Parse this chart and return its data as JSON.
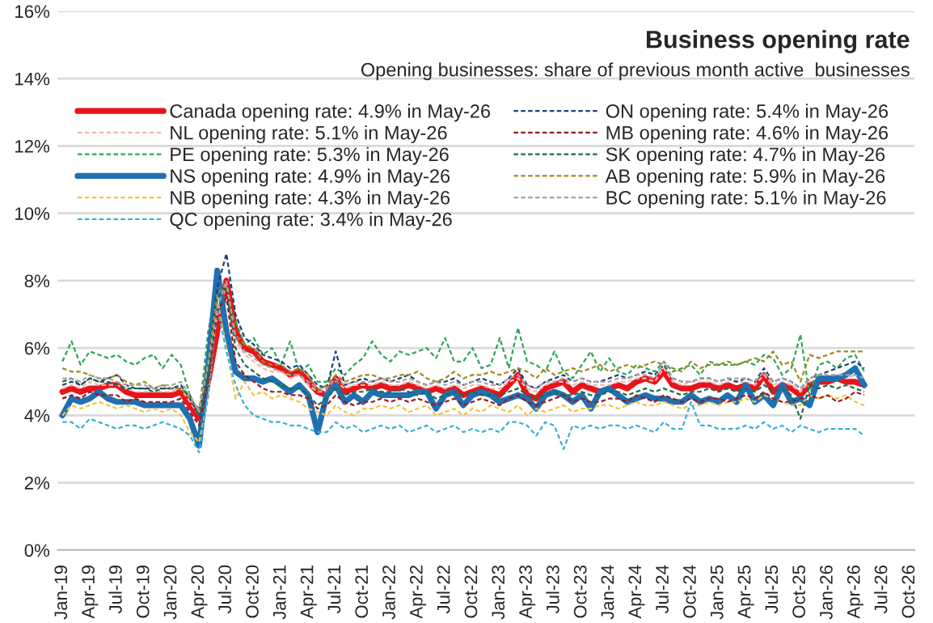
{
  "chart_data": {
    "type": "line",
    "title": "Business opening rate",
    "subtitle": "Opening businesses: share of previous month active  businesses",
    "categories": [
      "Jan-19",
      null,
      null,
      "Apr-19",
      null,
      null,
      "Jul-19",
      null,
      null,
      "Oct-19",
      null,
      null,
      "Jan-20",
      null,
      null,
      "Apr-20",
      null,
      null,
      "Jul-20",
      null,
      null,
      "Oct-20",
      null,
      null,
      "Jan-21",
      null,
      null,
      "Apr-21",
      null,
      null,
      "Jul-21",
      null,
      null,
      "Oct-21",
      null,
      null,
      "Jan-22",
      null,
      null,
      "Apr-22",
      null,
      null,
      "Jul-22",
      null,
      null,
      "Oct-22",
      null,
      null,
      "Jan-23",
      null,
      null,
      "Apr-23",
      null,
      null,
      "Jul-23",
      null,
      null,
      "Oct-23",
      null,
      null,
      "Jan-24",
      null,
      null,
      "Apr-24",
      null,
      null,
      "Jul-24",
      null,
      null,
      "Oct-24",
      null,
      null,
      "Jan-25",
      null,
      null,
      "Apr-25",
      null,
      null,
      "Jul-25",
      null,
      null,
      "Oct-25",
      null,
      null,
      "Jan-26",
      null,
      null,
      "Apr-26",
      null,
      null,
      "Jul-26",
      null,
      null,
      "Oct-26"
    ],
    "ylim": [
      0,
      16
    ],
    "yticks": [
      {
        "value": 0,
        "label": "0%"
      },
      {
        "value": 2,
        "label": "2%"
      },
      {
        "value": 4,
        "label": "4%"
      },
      {
        "value": 6,
        "label": "6%"
      },
      {
        "value": 8,
        "label": "8%"
      },
      {
        "value": 10,
        "label": "10%"
      },
      {
        "value": 12,
        "label": "12%"
      },
      {
        "value": 14,
        "label": "14%"
      },
      {
        "value": 16,
        "label": "16%"
      }
    ],
    "grid": "y",
    "legend": "top right",
    "marker": "none",
    "series": [
      {
        "name": "Canada opening rate: 4.9% in May-26",
        "color": "#e8141b",
        "line_style": "solid",
        "values": [
          4.7,
          4.8,
          4.7,
          4.8,
          4.8,
          4.9,
          4.9,
          4.7,
          4.6,
          4.6,
          4.6,
          4.6,
          4.6,
          4.7,
          4.3,
          3.9,
          5.0,
          6.5,
          8.0,
          6.5,
          6.0,
          5.9,
          5.6,
          5.5,
          5.4,
          5.2,
          5.3,
          5.0,
          4.7,
          4.6,
          5.1,
          4.7,
          4.8,
          4.9,
          4.8,
          4.9,
          4.8,
          4.8,
          4.9,
          4.8,
          4.7,
          4.8,
          4.7,
          4.8,
          4.6,
          4.7,
          4.8,
          4.7,
          4.6,
          4.9,
          5.2,
          4.6,
          4.5,
          4.8,
          4.9,
          5.0,
          4.7,
          4.9,
          4.8,
          4.7,
          4.8,
          4.9,
          4.8,
          5.0,
          5.1,
          5.0,
          5.3,
          4.9,
          4.8,
          4.8,
          4.9,
          4.9,
          4.8,
          4.9,
          4.8,
          4.9,
          4.8,
          5.2,
          4.7,
          4.9,
          4.8,
          4.6,
          4.9,
          5.0,
          5.0,
          5.1,
          5.0,
          5.0,
          4.9,
          null,
          null,
          null,
          null,
          null
        ]
      },
      {
        "name": "NL opening rate: 5.1% in May-26",
        "color": "#f4b6ae",
        "line_style": "dashed",
        "values": [
          4.8,
          4.9,
          4.8,
          5.0,
          4.9,
          4.9,
          4.9,
          4.8,
          4.7,
          4.7,
          4.7,
          4.7,
          4.7,
          4.8,
          4.4,
          4.0,
          5.2,
          7.0,
          7.9,
          6.2,
          5.8,
          5.6,
          5.4,
          5.3,
          5.3,
          5.1,
          5.2,
          4.9,
          4.7,
          4.7,
          5.0,
          4.8,
          4.9,
          4.9,
          4.9,
          5.0,
          4.9,
          4.9,
          5.0,
          4.9,
          4.8,
          4.9,
          4.8,
          4.9,
          4.8,
          4.9,
          4.9,
          4.8,
          4.8,
          5.0,
          5.1,
          4.8,
          4.7,
          4.9,
          5.0,
          5.0,
          4.9,
          5.0,
          4.9,
          4.9,
          4.9,
          5.0,
          5.0,
          5.1,
          5.1,
          5.0,
          5.4,
          5.0,
          4.9,
          5.0,
          5.0,
          5.0,
          4.9,
          5.0,
          5.0,
          5.0,
          4.9,
          5.2,
          4.9,
          5.0,
          4.9,
          4.7,
          5.0,
          5.1,
          5.1,
          5.2,
          5.1,
          5.2,
          5.1,
          null,
          null,
          null,
          null,
          null
        ]
      },
      {
        "name": "PE opening rate: 5.3% in May-26",
        "color": "#2ea55a",
        "line_style": "dashed",
        "values": [
          5.6,
          6.2,
          5.5,
          5.9,
          5.8,
          5.7,
          5.8,
          5.6,
          5.5,
          5.7,
          5.8,
          5.4,
          5.8,
          5.5,
          4.6,
          4.0,
          6.5,
          7.8,
          7.4,
          6.8,
          6.1,
          6.3,
          5.8,
          6.0,
          5.5,
          6.2,
          5.3,
          5.5,
          5.0,
          5.0,
          5.4,
          5.2,
          5.5,
          5.7,
          6.2,
          5.8,
          5.6,
          5.9,
          5.8,
          5.9,
          6.0,
          5.7,
          6.3,
          5.6,
          5.6,
          6.0,
          5.4,
          5.5,
          6.3,
          5.4,
          6.6,
          5.6,
          5.5,
          5.3,
          5.9,
          5.3,
          5.1,
          5.5,
          5.9,
          5.3,
          5.7,
          5.3,
          5.2,
          5.5,
          5.4,
          5.3,
          5.6,
          5.3,
          5.4,
          5.5,
          5.2,
          5.6,
          5.5,
          5.5,
          5.5,
          5.6,
          5.5,
          5.8,
          5.7,
          5.2,
          5.4,
          6.4,
          4.6,
          5.5,
          5.6,
          5.4,
          5.7,
          5.8,
          5.3,
          null,
          null,
          null,
          null,
          null
        ]
      },
      {
        "name": "NS opening rate: 4.9% in May-26",
        "color": "#1f70b3",
        "line_style": "solid",
        "values": [
          4.0,
          4.5,
          4.4,
          4.5,
          4.7,
          4.5,
          4.4,
          4.4,
          4.4,
          4.3,
          4.3,
          4.3,
          4.3,
          4.3,
          3.9,
          3.1,
          5.5,
          8.3,
          6.5,
          5.3,
          5.1,
          5.1,
          5.0,
          5.1,
          4.9,
          4.7,
          4.9,
          4.6,
          3.5,
          4.6,
          4.9,
          4.4,
          4.6,
          4.4,
          4.7,
          4.6,
          4.6,
          4.6,
          4.6,
          4.7,
          4.7,
          4.2,
          4.6,
          4.7,
          4.3,
          4.6,
          4.7,
          4.6,
          4.4,
          4.5,
          4.6,
          4.5,
          4.2,
          4.6,
          4.7,
          4.6,
          4.4,
          4.6,
          4.2,
          4.7,
          4.8,
          4.6,
          4.4,
          4.5,
          4.6,
          4.5,
          4.5,
          4.4,
          4.4,
          4.6,
          4.4,
          4.5,
          4.4,
          4.6,
          4.4,
          4.9,
          4.4,
          4.6,
          4.3,
          4.9,
          4.4,
          4.5,
          4.3,
          5.1,
          5.1,
          5.1,
          5.2,
          5.4,
          4.9,
          null,
          null,
          null,
          null,
          null
        ]
      },
      {
        "name": "NB opening rate: 4.3% in May-26",
        "color": "#f5c342",
        "line_style": "dashed",
        "values": [
          4.0,
          4.3,
          4.2,
          4.3,
          4.4,
          4.3,
          4.2,
          4.3,
          4.2,
          4.1,
          4.2,
          4.1,
          4.2,
          4.0,
          3.5,
          3.2,
          4.5,
          7.4,
          6.0,
          4.5,
          5.0,
          4.6,
          4.7,
          4.5,
          4.6,
          4.5,
          4.4,
          4.2,
          4.1,
          4.0,
          4.3,
          4.1,
          4.0,
          4.2,
          4.2,
          4.3,
          4.2,
          4.3,
          4.1,
          4.2,
          4.3,
          4.0,
          4.1,
          4.2,
          4.0,
          4.2,
          4.1,
          4.3,
          4.2,
          4.1,
          4.3,
          4.0,
          4.2,
          4.1,
          4.2,
          4.3,
          4.1,
          4.2,
          4.2,
          4.3,
          4.3,
          4.2,
          4.3,
          4.4,
          4.3,
          4.3,
          4.4,
          4.3,
          4.2,
          4.3,
          4.3,
          4.4,
          4.3,
          4.4,
          4.4,
          4.5,
          4.4,
          4.6,
          4.5,
          4.4,
          4.3,
          4.3,
          4.6,
          4.5,
          4.6,
          4.5,
          4.6,
          4.4,
          4.3,
          null,
          null,
          null,
          null,
          null
        ]
      },
      {
        "name": "QC opening rate: 3.4% in May-26",
        "color": "#3ab0d8",
        "line_style": "dashed",
        "values": [
          3.8,
          3.8,
          3.6,
          3.9,
          3.8,
          3.7,
          3.6,
          3.7,
          3.7,
          3.6,
          3.7,
          3.8,
          3.7,
          3.6,
          3.4,
          2.9,
          4.6,
          7.2,
          5.9,
          4.9,
          4.3,
          4.0,
          3.9,
          3.8,
          3.8,
          3.7,
          3.7,
          3.6,
          3.5,
          3.5,
          3.8,
          3.6,
          3.7,
          3.5,
          3.6,
          3.7,
          3.6,
          3.7,
          3.5,
          3.6,
          3.7,
          3.5,
          3.6,
          3.7,
          3.5,
          3.6,
          3.5,
          3.6,
          3.5,
          3.8,
          3.8,
          3.7,
          3.4,
          3.8,
          3.7,
          3.0,
          3.7,
          3.6,
          3.7,
          3.6,
          3.7,
          3.7,
          3.6,
          3.7,
          3.6,
          3.5,
          3.8,
          3.6,
          3.6,
          4.4,
          3.7,
          3.7,
          3.6,
          3.6,
          3.6,
          3.7,
          3.6,
          3.8,
          3.6,
          3.7,
          3.5,
          3.7,
          3.6,
          3.5,
          3.6,
          3.6,
          3.6,
          3.6,
          3.4,
          null,
          null,
          null,
          null,
          null
        ]
      },
      {
        "name": "ON opening rate: 5.4% in May-26",
        "color": "#1f3f7a",
        "line_style": "dashed",
        "values": [
          4.9,
          5.0,
          4.9,
          5.1,
          5.0,
          5.1,
          5.2,
          4.9,
          4.8,
          4.8,
          4.8,
          4.8,
          4.8,
          4.9,
          4.5,
          4.0,
          5.4,
          7.8,
          8.8,
          7.0,
          6.3,
          6.1,
          5.8,
          5.7,
          5.6,
          5.4,
          5.5,
          5.2,
          4.9,
          4.8,
          5.9,
          4.9,
          5.0,
          5.1,
          5.0,
          5.1,
          5.0,
          5.1,
          5.2,
          5.0,
          4.9,
          5.0,
          5.0,
          5.1,
          4.9,
          5.0,
          5.1,
          5.0,
          4.9,
          5.1,
          5.4,
          4.9,
          4.8,
          5.0,
          5.1,
          5.2,
          5.0,
          5.1,
          5.0,
          5.0,
          5.1,
          5.2,
          5.1,
          5.2,
          5.3,
          5.2,
          5.5,
          5.1,
          5.0,
          5.0,
          5.1,
          5.1,
          5.0,
          5.1,
          5.0,
          5.1,
          5.0,
          5.4,
          5.0,
          5.1,
          5.0,
          4.8,
          5.1,
          5.2,
          5.3,
          5.4,
          5.5,
          5.6,
          5.4,
          null,
          null,
          null,
          null,
          null
        ]
      },
      {
        "name": "MB opening rate: 4.6% in May-26",
        "color": "#9b1b1f",
        "line_style": "dashed",
        "values": [
          4.5,
          4.6,
          4.5,
          4.7,
          4.6,
          4.6,
          4.6,
          4.4,
          4.5,
          4.4,
          4.4,
          4.4,
          4.4,
          4.5,
          4.1,
          3.7,
          5.0,
          7.1,
          7.5,
          5.6,
          5.2,
          5.0,
          4.8,
          4.7,
          4.7,
          4.6,
          4.6,
          4.5,
          4.2,
          4.3,
          4.6,
          4.4,
          4.3,
          4.4,
          4.4,
          4.5,
          4.4,
          4.5,
          4.4,
          4.5,
          4.4,
          4.3,
          4.4,
          4.5,
          4.3,
          4.4,
          4.5,
          4.4,
          4.3,
          4.5,
          4.6,
          4.4,
          4.3,
          4.4,
          4.5,
          4.6,
          4.4,
          4.5,
          4.4,
          4.4,
          4.5,
          4.5,
          4.4,
          4.6,
          4.5,
          4.4,
          4.6,
          4.5,
          4.4,
          4.5,
          4.4,
          4.5,
          4.5,
          4.4,
          4.5,
          4.6,
          4.5,
          4.7,
          4.5,
          4.4,
          4.4,
          4.5,
          4.6,
          4.5,
          4.6,
          4.4,
          4.5,
          4.7,
          4.6,
          null,
          null,
          null,
          null,
          null
        ]
      },
      {
        "name": "SK opening rate: 4.7% in May-26",
        "color": "#1e6b4a",
        "line_style": "dashed",
        "values": [
          5.0,
          5.1,
          4.9,
          5.1,
          5.0,
          5.0,
          4.9,
          4.8,
          4.8,
          4.8,
          4.7,
          4.8,
          4.8,
          4.8,
          4.6,
          4.0,
          5.2,
          7.5,
          7.8,
          6.0,
          5.5,
          5.3,
          5.1,
          5.0,
          4.9,
          4.8,
          4.8,
          4.6,
          4.3,
          4.5,
          4.8,
          4.6,
          4.7,
          4.7,
          4.8,
          4.7,
          4.7,
          4.8,
          4.7,
          4.6,
          4.7,
          4.5,
          4.6,
          4.7,
          4.6,
          4.7,
          4.6,
          4.6,
          4.6,
          4.7,
          4.8,
          4.6,
          4.5,
          4.6,
          4.7,
          4.6,
          4.6,
          4.7,
          4.6,
          4.6,
          4.7,
          4.7,
          4.6,
          4.7,
          4.8,
          4.7,
          4.8,
          4.7,
          4.6,
          4.7,
          4.7,
          4.8,
          4.7,
          4.8,
          4.7,
          4.8,
          4.7,
          4.9,
          4.7,
          4.8,
          4.6,
          3.9,
          4.9,
          4.8,
          4.9,
          4.8,
          4.9,
          4.8,
          4.7,
          null,
          null,
          null,
          null,
          null
        ]
      },
      {
        "name": "AB opening rate: 5.9% in May-26",
        "color": "#a08a1e",
        "line_style": "dashed",
        "values": [
          5.4,
          5.3,
          5.3,
          5.2,
          5.1,
          5.1,
          5.2,
          5.0,
          4.9,
          5.0,
          4.8,
          4.9,
          4.8,
          4.8,
          4.5,
          4.2,
          5.6,
          7.6,
          7.9,
          6.4,
          6.1,
          6.0,
          5.6,
          5.5,
          5.5,
          5.3,
          5.4,
          5.2,
          4.7,
          4.9,
          5.2,
          5.0,
          5.1,
          5.2,
          5.2,
          5.1,
          5.1,
          5.2,
          5.2,
          5.3,
          5.1,
          5.0,
          5.1,
          5.3,
          5.1,
          5.2,
          5.2,
          5.3,
          5.2,
          5.3,
          5.4,
          5.3,
          5.1,
          5.4,
          5.2,
          5.3,
          5.4,
          5.3,
          5.4,
          5.5,
          5.3,
          5.4,
          5.5,
          5.4,
          5.5,
          5.6,
          5.5,
          5.4,
          5.3,
          5.6,
          5.4,
          5.5,
          5.5,
          5.6,
          5.5,
          5.6,
          5.7,
          5.6,
          5.9,
          5.5,
          5.6,
          5.0,
          5.8,
          5.7,
          5.8,
          5.9,
          5.9,
          5.9,
          5.9,
          null,
          null,
          null,
          null,
          null
        ]
      },
      {
        "name": "BC opening rate: 5.1% in May-26",
        "color": "#a6a6a6",
        "line_style": "dashed",
        "values": [
          5.1,
          5.1,
          5.0,
          5.2,
          5.1,
          5.1,
          5.0,
          4.9,
          4.9,
          4.9,
          4.8,
          4.9,
          4.9,
          5.0,
          4.6,
          4.1,
          5.5,
          7.2,
          8.0,
          6.3,
          5.9,
          5.7,
          5.5,
          5.4,
          5.3,
          5.2,
          5.2,
          5.0,
          4.8,
          4.8,
          5.1,
          4.9,
          5.0,
          5.0,
          5.0,
          5.1,
          5.0,
          5.0,
          5.1,
          5.0,
          4.9,
          5.0,
          4.9,
          5.0,
          4.9,
          5.0,
          5.0,
          4.9,
          4.9,
          5.1,
          5.2,
          4.9,
          4.8,
          5.0,
          5.0,
          5.1,
          5.0,
          5.1,
          5.0,
          5.0,
          5.0,
          5.1,
          5.1,
          5.2,
          5.2,
          5.1,
          5.6,
          5.1,
          5.0,
          5.0,
          5.1,
          5.1,
          5.0,
          5.1,
          5.1,
          5.1,
          5.0,
          5.3,
          5.0,
          5.1,
          5.0,
          4.8,
          5.1,
          5.2,
          5.2,
          5.2,
          5.2,
          5.2,
          5.1,
          null,
          null,
          null,
          null,
          null
        ]
      }
    ]
  }
}
